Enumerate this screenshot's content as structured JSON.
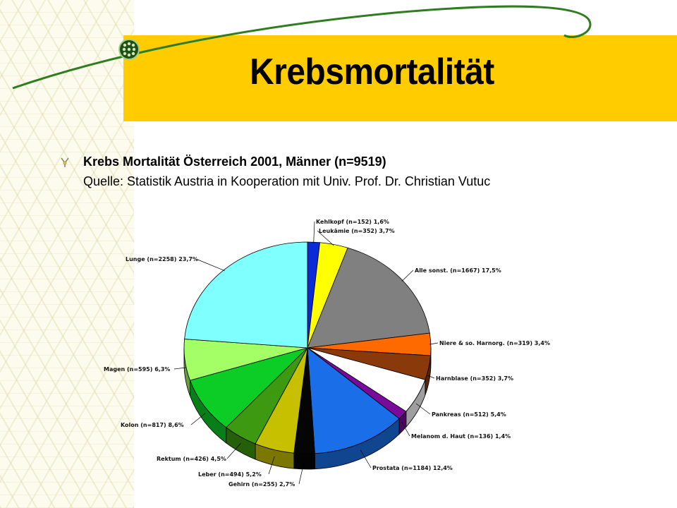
{
  "slide": {
    "title": "Krebsmortalität",
    "subtitle": "Krebs Mortalität Österreich 2001, Männer (n=9519)",
    "source": "Quelle: Statistik Austria in Kooperation mit Univ. Prof. Dr. Christian Vutuc"
  },
  "colors": {
    "banner": "#ffcc00",
    "swoosh": "#2e7d1e"
  },
  "chart_data": {
    "type": "pie",
    "title": "",
    "style": "3d",
    "slices": [
      {
        "label": "Kehlkopf (n=152) 1,6%",
        "value": 1.6,
        "color": "#0a2bd6"
      },
      {
        "label": "Leukämie (n=352) 3,7%",
        "value": 3.7,
        "color": "#ffff00"
      },
      {
        "label": "Alle sonst. (n=1667) 17,5%",
        "value": 17.5,
        "color": "#808080"
      },
      {
        "label": "Niere & so. Harnorg. (n=319) 3,4%",
        "value": 3.4,
        "color": "#ff6a00"
      },
      {
        "label": "Harnblase (n=352) 3,7%",
        "value": 3.7,
        "color": "#8a3a0a"
      },
      {
        "label": "Pankreas (n=512) 5,4%",
        "value": 5.4,
        "color": "#ffffff"
      },
      {
        "label": "Melanom d. Haut (n=136) 1,4%",
        "value": 1.4,
        "color": "#7a0a9a"
      },
      {
        "label": "Prostata (n=1184) 12,4%",
        "value": 12.4,
        "color": "#1a6fe8"
      },
      {
        "label": "Gehirn (n=255) 2,7%",
        "value": 2.7,
        "color": "#050505"
      },
      {
        "label": "Leber (n=494) 5,2%",
        "value": 5.2,
        "color": "#c6c000"
      },
      {
        "label": "Rektum (n=426) 4,5%",
        "value": 4.5,
        "color": "#3d9a10"
      },
      {
        "label": "Kolon (n=817) 8,6%",
        "value": 8.6,
        "color": "#0ccc26"
      },
      {
        "label": "Magen (n=595) 6,3%",
        "value": 6.3,
        "color": "#a4ff66"
      },
      {
        "label": "Lunge (n=2258) 23,7%",
        "value": 23.7,
        "color": "#80ffff"
      }
    ]
  }
}
